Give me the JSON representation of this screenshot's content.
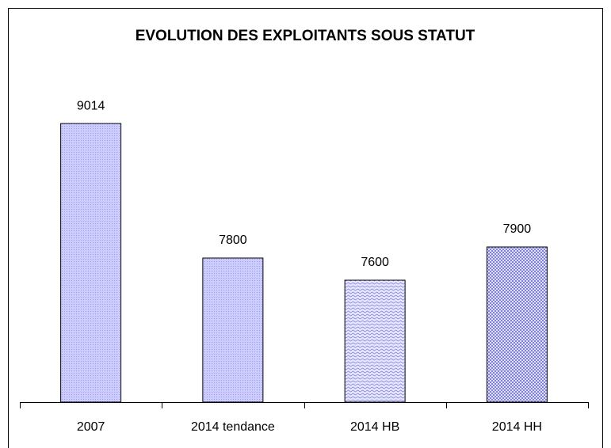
{
  "chart_data": {
    "type": "bar",
    "title": "EVOLUTION DES EXPLOITANTS SOUS STATUT",
    "categories": [
      "2007",
      "2014 tendance",
      "2014 HB",
      "2014 HH"
    ],
    "values": [
      9014,
      7800,
      7600,
      7900
    ],
    "color": "#ccccff",
    "ylim": [
      6500,
      9500
    ]
  }
}
